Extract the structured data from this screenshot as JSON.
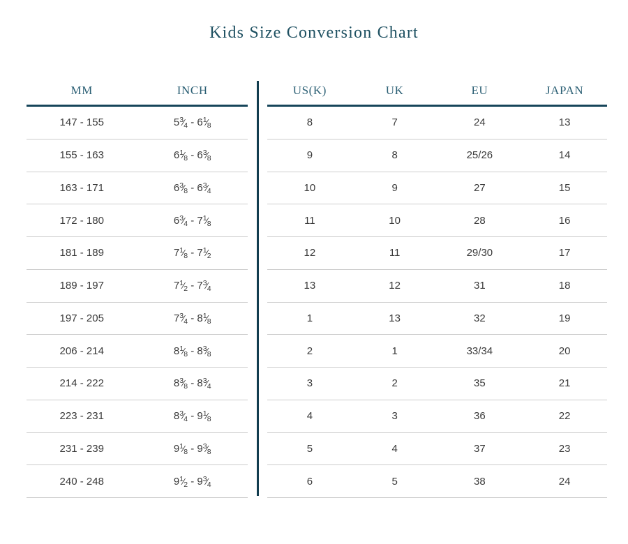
{
  "colors": {
    "title_text": "#1f5162",
    "header_text": "#2b5f74",
    "header_rule": "#16455a",
    "divider": "#123d4f",
    "row_separator": "#cccccc",
    "cell_text": "#3a3a3a",
    "background": "#ffffff"
  },
  "chart_data": {
    "type": "table",
    "title": "Kids Size Conversion Chart",
    "sections": [
      {
        "id": "measurement",
        "columns": [
          "MM",
          "INCH"
        ],
        "rows": [
          [
            "147 - 155",
            "5¾ - 6⅛"
          ],
          [
            "155 - 163",
            "6⅛ - 6⅜"
          ],
          [
            "163 - 171",
            "6⅜ - 6¾"
          ],
          [
            "172 - 180",
            "6¾ - 7⅛"
          ],
          [
            "181 - 189",
            "7⅛ - 7½"
          ],
          [
            "189 - 197",
            "7½ - 7¾"
          ],
          [
            "197 - 205",
            "7¾ - 8⅛"
          ],
          [
            "206 - 214",
            "8⅛ - 8⅜"
          ],
          [
            "214 - 222",
            "8⅜ - 8¾"
          ],
          [
            "223 - 231",
            "8¾ - 9⅛"
          ],
          [
            "231 - 239",
            "9⅛ - 9⅜"
          ],
          [
            "240 - 248",
            "9½ - 9¾"
          ]
        ]
      },
      {
        "id": "sizes",
        "columns": [
          "US(K)",
          "UK",
          "EU",
          "JAPAN"
        ],
        "rows": [
          [
            "8",
            "7",
            "24",
            "13"
          ],
          [
            "9",
            "8",
            "25/26",
            "14"
          ],
          [
            "10",
            "9",
            "27",
            "15"
          ],
          [
            "11",
            "10",
            "28",
            "16"
          ],
          [
            "12",
            "11",
            "29/30",
            "17"
          ],
          [
            "13",
            "12",
            "31",
            "18"
          ],
          [
            "1",
            "13",
            "32",
            "19"
          ],
          [
            "2",
            "1",
            "33/34",
            "20"
          ],
          [
            "3",
            "2",
            "35",
            "21"
          ],
          [
            "4",
            "3",
            "36",
            "22"
          ],
          [
            "5",
            "4",
            "37",
            "23"
          ],
          [
            "6",
            "5",
            "38",
            "24"
          ]
        ]
      }
    ]
  }
}
